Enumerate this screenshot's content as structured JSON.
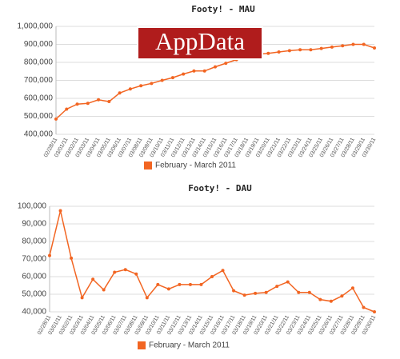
{
  "watermark": "AppData",
  "chart_data": [
    {
      "type": "line",
      "title": "Footy! - MAU",
      "categories": [
        "02/28/11",
        "03/01/11",
        "03/02/11",
        "03/03/11",
        "03/04/11",
        "03/05/11",
        "03/06/11",
        "03/07/11",
        "03/08/11",
        "03/09/11",
        "03/10/11",
        "03/11/11",
        "03/12/11",
        "03/13/11",
        "03/14/11",
        "03/15/11",
        "03/16/11",
        "03/17/11",
        "03/18/11",
        "03/19/11",
        "03/20/11",
        "03/21/11",
        "03/22/11",
        "03/23/11",
        "03/24/11",
        "03/25/11",
        "03/26/11",
        "03/27/11",
        "03/28/11",
        "03/29/11",
        "03/30/11"
      ],
      "series": [
        {
          "name": "February - March 2011",
          "color": "#f26522",
          "values": [
            485000,
            540000,
            568000,
            572000,
            592000,
            582000,
            630000,
            652000,
            670000,
            683000,
            700000,
            715000,
            735000,
            752000,
            752000,
            775000,
            795000,
            815000,
            835000,
            845000,
            850000,
            858000,
            865000,
            870000,
            870000,
            877000,
            885000,
            892000,
            900000,
            900000,
            880000
          ]
        }
      ],
      "ylim": [
        400000,
        1000000
      ],
      "yticks": [
        {
          "value": 400000,
          "label": "400,000"
        },
        {
          "value": 500000,
          "label": "500,000"
        },
        {
          "value": 600000,
          "label": "600,000"
        },
        {
          "value": 700000,
          "label": "700,000"
        },
        {
          "value": 800000,
          "label": "800,000"
        },
        {
          "value": 900000,
          "label": "900,000"
        },
        {
          "value": 1000000,
          "label": "1,000,000"
        }
      ],
      "grid": true,
      "legend": "bottom"
    },
    {
      "type": "line",
      "title": "Footy! - DAU",
      "categories": [
        "02/28/11",
        "03/01/11",
        "03/02/11",
        "03/03/11",
        "03/04/11",
        "03/05/11",
        "03/06/11",
        "03/07/11",
        "03/08/11",
        "03/09/11",
        "03/10/11",
        "03/11/11",
        "03/12/11",
        "03/13/11",
        "03/14/11",
        "03/15/11",
        "03/16/11",
        "03/17/11",
        "03/18/11",
        "03/19/11",
        "03/20/11",
        "03/21/11",
        "03/22/11",
        "03/23/11",
        "03/24/11",
        "03/25/11",
        "03/26/11",
        "03/27/11",
        "03/28/11",
        "03/29/11",
        "03/30/11"
      ],
      "series": [
        {
          "name": "February - March 2011",
          "color": "#f26522",
          "values": [
            72000,
            97500,
            70500,
            48000,
            58500,
            52500,
            62500,
            64000,
            61500,
            48000,
            55500,
            53000,
            55500,
            55500,
            55500,
            60000,
            63500,
            52000,
            49500,
            50500,
            51000,
            54500,
            57000,
            51000,
            51000,
            47000,
            46000,
            49000,
            53500,
            42500,
            40000
          ]
        }
      ],
      "ylim": [
        40000,
        100000
      ],
      "yticks": [
        {
          "value": 40000,
          "label": "40,000"
        },
        {
          "value": 50000,
          "label": "50,000"
        },
        {
          "value": 60000,
          "label": "60,000"
        },
        {
          "value": 70000,
          "label": "70,000"
        },
        {
          "value": 80000,
          "label": "80,000"
        },
        {
          "value": 90000,
          "label": "90,000"
        },
        {
          "value": 100000,
          "label": "100,000"
        }
      ],
      "grid": true,
      "legend": "bottom"
    }
  ]
}
